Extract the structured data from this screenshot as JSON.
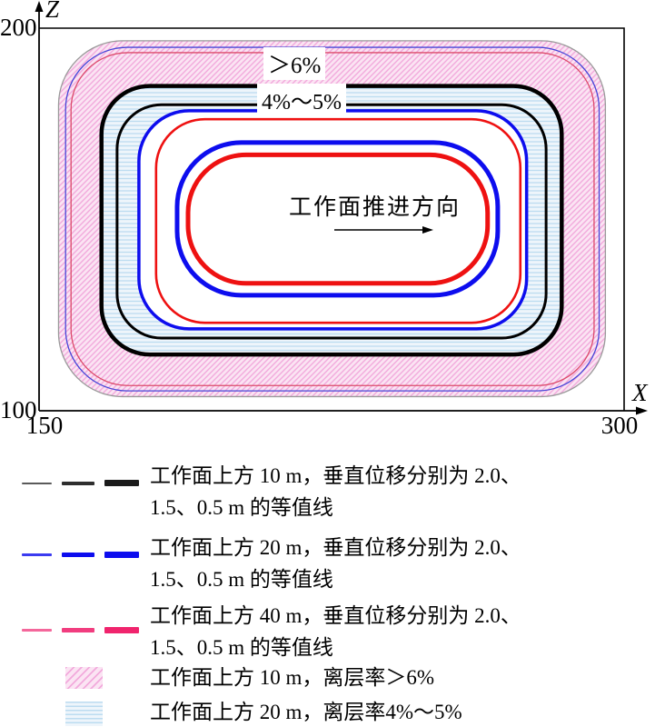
{
  "figure": {
    "axis": {
      "z_label": "Z",
      "x_label": "X",
      "z_tick_top": "200",
      "z_tick_bottom": "100",
      "x_tick_left": "150",
      "x_tick_right": "300"
    },
    "labels": {
      "region_gt6": "＞6%",
      "region_4_5": "4%～5%",
      "advance": "工作面推进方向"
    }
  },
  "legend": {
    "rows": [
      {
        "line1": "工作面上方 10 m，垂直位移分别为 2.0、",
        "line2": "1.5、0.5 m 的等值线"
      },
      {
        "line1": "工作面上方 20 m，垂直位移分别为 2.0、",
        "line2": "1.5、0.5 m 的等值线"
      },
      {
        "line1": "工作面上方 40 m，垂直位移分别为 2.0、",
        "line2": "1.5、0.5 m 的等值线"
      },
      {
        "line1": "工作面上方 10 m，离层率＞6%"
      },
      {
        "line1": "工作面上方 20 m，离层率4%～5%"
      }
    ]
  },
  "colors": {
    "black_line": "#000000",
    "gray_outline": "#9a9a9a",
    "blue_line": "#0d0dee",
    "blue_thin": "#4646d8",
    "red_line": "#ee1111",
    "red_thin": "#dc4a6a",
    "crimson_legend": "#f0246d",
    "pink_fill": "#fbe4f3",
    "pink_hatch": "#f2aadc",
    "lightblue_fill": "#eef5fb",
    "lightblue_hatch": "#bcdcf0"
  },
  "chart_data": {
    "type": "contour",
    "title": "",
    "xlabel": "X",
    "ylabel": "Z",
    "xlim": [
      150,
      300
    ],
    "ylim": [
      100,
      200
    ],
    "x_ticks": [
      150,
      300
    ],
    "z_ticks": [
      100,
      200
    ],
    "grid": false,
    "annotations": [
      "＞6%",
      "4%～5%",
      "工作面推进方向"
    ],
    "contour_sets": [
      {
        "id": "10m",
        "name": "工作面上方 10 m 垂直位移等值线",
        "color": "#000000",
        "contours": [
          {
            "value_m": 0.5,
            "x": [
              155.0,
              295.2
            ],
            "z": [
              103.7,
              196.7
            ],
            "stroke": "#9a9a9a",
            "width": 1.3,
            "round": 0.18
          },
          {
            "value_m": 1.5,
            "x": [
              166.0,
              284.0
            ],
            "z": [
              114.7,
              184.9
            ],
            "stroke": "#000000",
            "width": 4.5,
            "round": 0.18
          },
          {
            "value_m": 2.0,
            "x": [
              170.0,
              280.0
            ],
            "z": [
              119.0,
              180.0
            ],
            "stroke": "#000000",
            "width": 3.0,
            "round": 0.19
          }
        ]
      },
      {
        "id": "20m",
        "name": "工作面上方 20 m 垂直位移等值线",
        "color": "#0d0dee",
        "contours": [
          {
            "value_m": 0.5,
            "x": [
              156.8,
              293.6
            ],
            "z": [
              105.2,
              195.0
            ],
            "stroke": "#4646d8",
            "width": 1.3,
            "round": 0.18
          },
          {
            "value_m": 1.5,
            "x": [
              175.6,
              275.0
            ],
            "z": [
              121.4,
              178.4
            ],
            "stroke": "#0d0dee",
            "width": 3.5,
            "round": 0.23
          },
          {
            "value_m": 2.0,
            "x": [
              185.4,
              267.6
            ],
            "z": [
              130.2,
              170.1
            ],
            "stroke": "#0d0dee",
            "width": 5.0,
            "round": 0.42
          }
        ]
      },
      {
        "id": "40m",
        "name": "工作面上方 40 m 垂直位移等值线",
        "color": "#ee1111",
        "contours": [
          {
            "value_m": 0.5,
            "x": [
              158.2,
              292.3
            ],
            "z": [
              106.6,
              193.6
            ],
            "stroke": "#dc4a6a",
            "width": 1.3,
            "round": 0.17
          },
          {
            "value_m": 1.5,
            "x": [
              180.0,
              273.4
            ],
            "z": [
              123.0,
              176.2
            ],
            "stroke": "#ee1111",
            "width": 2.6,
            "round": 0.24
          },
          {
            "value_m": 2.0,
            "x": [
              188.2,
              265.0
            ],
            "z": [
              133.3,
              166.9
            ],
            "stroke": "#ee1111",
            "width": 5.0,
            "round": 0.45
          }
        ]
      }
    ],
    "regions": [
      {
        "data_name": "region-separation-gt6-fill",
        "name": "工作面上方 10 m 离层率＞6%",
        "outer": [
          0,
          0
        ],
        "inner": [
          0,
          1
        ],
        "pattern": "url(#pinkHatch)"
      },
      {
        "data_name": "region-separation-4-5-fill",
        "name": "工作面上方 20 m 离层率4%～5%",
        "outer": [
          0,
          1
        ],
        "inner": [
          1,
          1
        ],
        "pattern": "url(#blueLines)"
      }
    ]
  }
}
